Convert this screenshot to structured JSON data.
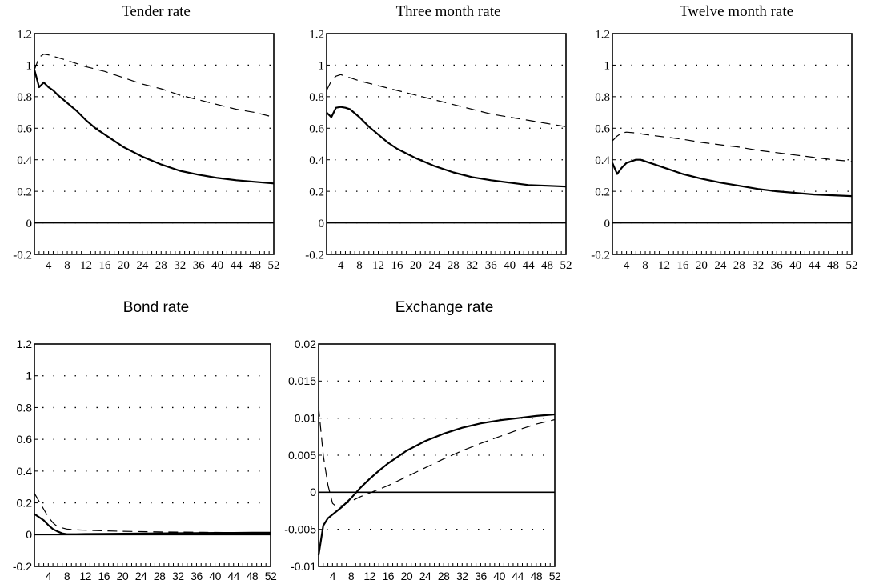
{
  "chart_data": [
    {
      "type": "line",
      "title": "Tender rate",
      "x_ticks": [
        "4",
        "8",
        "12",
        "16",
        "20",
        "24",
        "28",
        "32",
        "36",
        "40",
        "44",
        "48",
        "52"
      ],
      "y_ticks": [
        "1.2",
        "1",
        "0.8",
        "0.6",
        "0.4",
        "0.2",
        "0",
        "-0.2"
      ],
      "xlim": [
        1,
        52
      ],
      "ylim": [
        -0.2,
        1.2
      ],
      "grid": "dotted",
      "series": [
        {
          "style": "solid",
          "x": [
            1,
            2,
            3,
            4,
            5,
            6,
            8,
            10,
            12,
            14,
            16,
            18,
            20,
            24,
            28,
            32,
            36,
            40,
            44,
            48,
            52
          ],
          "y": [
            0.97,
            0.86,
            0.89,
            0.86,
            0.84,
            0.81,
            0.76,
            0.71,
            0.65,
            0.6,
            0.56,
            0.52,
            0.48,
            0.42,
            0.37,
            0.33,
            0.305,
            0.285,
            0.27,
            0.26,
            0.25
          ]
        },
        {
          "style": "dashed",
          "x": [
            1,
            2,
            3,
            4,
            8,
            12,
            16,
            20,
            24,
            28,
            32,
            36,
            40,
            44,
            48,
            52
          ],
          "y": [
            0.97,
            1.05,
            1.07,
            1.065,
            1.03,
            0.99,
            0.96,
            0.92,
            0.88,
            0.85,
            0.81,
            0.78,
            0.75,
            0.72,
            0.7,
            0.67
          ]
        }
      ]
    },
    {
      "type": "line",
      "title": "Three month rate",
      "x_ticks": [
        "4",
        "8",
        "12",
        "16",
        "20",
        "24",
        "28",
        "32",
        "36",
        "40",
        "44",
        "48",
        "52"
      ],
      "y_ticks": [
        "1.2",
        "1",
        "0.8",
        "0.6",
        "0.4",
        "0.2",
        "0",
        "-0.2"
      ],
      "xlim": [
        1,
        52
      ],
      "ylim": [
        -0.2,
        1.2
      ],
      "grid": "dotted",
      "series": [
        {
          "style": "solid",
          "x": [
            1,
            2,
            3,
            4,
            5,
            6,
            8,
            10,
            12,
            14,
            16,
            20,
            24,
            28,
            32,
            36,
            40,
            44,
            48,
            52
          ],
          "y": [
            0.7,
            0.67,
            0.73,
            0.735,
            0.73,
            0.72,
            0.67,
            0.61,
            0.56,
            0.51,
            0.47,
            0.41,
            0.36,
            0.32,
            0.29,
            0.27,
            0.255,
            0.24,
            0.235,
            0.23
          ]
        },
        {
          "style": "dashed",
          "x": [
            1,
            2,
            3,
            4,
            6,
            8,
            12,
            16,
            20,
            24,
            28,
            32,
            36,
            40,
            44,
            48,
            52
          ],
          "y": [
            0.84,
            0.9,
            0.93,
            0.94,
            0.92,
            0.9,
            0.87,
            0.84,
            0.81,
            0.78,
            0.75,
            0.72,
            0.69,
            0.67,
            0.65,
            0.63,
            0.61
          ]
        }
      ]
    },
    {
      "type": "line",
      "title": "Twelve month rate",
      "x_ticks": [
        "4",
        "8",
        "12",
        "16",
        "20",
        "24",
        "28",
        "32",
        "36",
        "40",
        "44",
        "48",
        "52"
      ],
      "y_ticks": [
        "1.2",
        "1",
        "0.8",
        "0.6",
        "0.4",
        "0.2",
        "0",
        "-0.2"
      ],
      "xlim": [
        1,
        52
      ],
      "ylim": [
        -0.2,
        1.2
      ],
      "grid": "dotted",
      "series": [
        {
          "style": "solid",
          "x": [
            1,
            2,
            3,
            4,
            5,
            6,
            7,
            8,
            10,
            12,
            16,
            20,
            24,
            28,
            32,
            36,
            40,
            44,
            48,
            52
          ],
          "y": [
            0.38,
            0.31,
            0.35,
            0.38,
            0.39,
            0.4,
            0.4,
            0.39,
            0.37,
            0.35,
            0.31,
            0.28,
            0.255,
            0.235,
            0.215,
            0.2,
            0.19,
            0.18,
            0.175,
            0.17
          ]
        },
        {
          "style": "dashed",
          "x": [
            1,
            2,
            3,
            4,
            6,
            8,
            12,
            16,
            20,
            24,
            28,
            32,
            36,
            40,
            44,
            48,
            52
          ],
          "y": [
            0.52,
            0.55,
            0.57,
            0.575,
            0.57,
            0.56,
            0.545,
            0.53,
            0.51,
            0.495,
            0.48,
            0.46,
            0.445,
            0.43,
            0.415,
            0.4,
            0.39
          ]
        }
      ]
    },
    {
      "type": "line",
      "title": "Bond rate",
      "x_ticks": [
        "4",
        "8",
        "12",
        "16",
        "20",
        "24",
        "28",
        "32",
        "36",
        "40",
        "44",
        "48",
        "52"
      ],
      "y_ticks": [
        "1.2",
        "1",
        "0.8",
        "0.6",
        "0.4",
        "0.2",
        "0",
        "-0.2"
      ],
      "xlim": [
        1,
        52
      ],
      "ylim": [
        -0.2,
        1.2
      ],
      "grid": "dotted",
      "series": [
        {
          "style": "solid",
          "x": [
            1,
            2,
            3,
            4,
            5,
            6,
            7,
            8,
            10,
            12,
            16,
            20,
            24,
            28,
            32,
            36,
            40,
            44,
            48,
            52
          ],
          "y": [
            0.13,
            0.11,
            0.09,
            0.06,
            0.035,
            0.02,
            0.008,
            0.003,
            0.003,
            0.004,
            0.005,
            0.006,
            0.007,
            0.008,
            0.009,
            0.01,
            0.011,
            0.011,
            0.012,
            0.012
          ]
        },
        {
          "style": "dashed",
          "x": [
            1,
            2,
            3,
            4,
            5,
            6,
            8,
            10,
            12,
            16,
            20,
            24,
            28,
            32,
            36,
            40,
            44,
            48,
            52
          ],
          "y": [
            0.26,
            0.21,
            0.16,
            0.11,
            0.075,
            0.05,
            0.035,
            0.03,
            0.028,
            0.024,
            0.021,
            0.019,
            0.017,
            0.016,
            0.015,
            0.014,
            0.013,
            0.012,
            0.012
          ]
        }
      ]
    },
    {
      "type": "line",
      "title": "Exchange rate",
      "x_ticks": [
        "4",
        "8",
        "12",
        "16",
        "20",
        "24",
        "28",
        "32",
        "36",
        "40",
        "44",
        "48",
        "52"
      ],
      "y_ticks": [
        "0.02",
        "0.015",
        "0.01",
        "0.005",
        "0",
        "-0.005",
        "-0.01"
      ],
      "xlim": [
        1,
        52
      ],
      "ylim": [
        -0.01,
        0.02
      ],
      "grid": "dotted",
      "series": [
        {
          "style": "solid",
          "x": [
            1,
            2,
            3,
            4,
            6,
            8,
            10,
            12,
            14,
            16,
            20,
            24,
            28,
            32,
            36,
            40,
            44,
            48,
            52
          ],
          "y": [
            -0.0085,
            -0.0045,
            -0.0035,
            -0.003,
            -0.002,
            -0.0008,
            0.0006,
            0.0018,
            0.0029,
            0.0039,
            0.0056,
            0.0069,
            0.0079,
            0.0087,
            0.0093,
            0.0097,
            0.01,
            0.0103,
            0.0105
          ]
        },
        {
          "style": "dashed",
          "x": [
            1,
            2,
            3,
            4,
            5,
            6,
            8,
            10,
            12,
            16,
            20,
            24,
            28,
            32,
            36,
            40,
            44,
            48,
            52
          ],
          "y": [
            0.0115,
            0.005,
            0.001,
            -0.0015,
            -0.002,
            -0.0018,
            -0.0012,
            -0.0006,
            -0.0001,
            0.0009,
            0.0021,
            0.0033,
            0.0045,
            0.0056,
            0.0066,
            0.0075,
            0.0084,
            0.0092,
            0.0098
          ]
        }
      ]
    }
  ]
}
